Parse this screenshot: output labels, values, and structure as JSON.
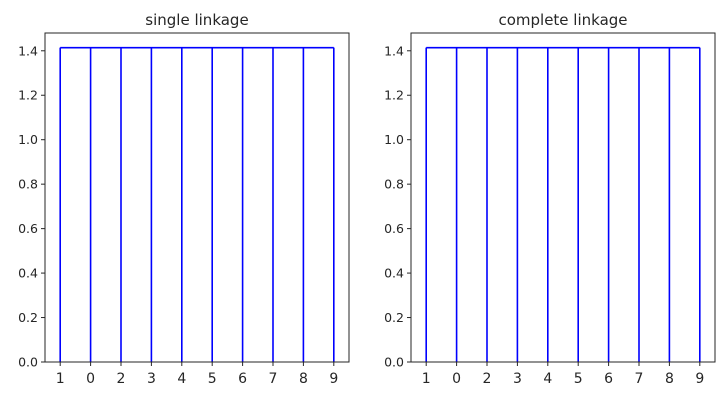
{
  "chart_data": [
    {
      "type": "dendrogram",
      "title": "single linkage",
      "xlabel": "",
      "ylabel": "",
      "ylim": [
        0,
        1.48
      ],
      "yticks": [
        "0.0",
        "0.2",
        "0.4",
        "0.6",
        "0.8",
        "1.0",
        "1.2",
        "1.4"
      ],
      "leaves": [
        "1",
        "0",
        "2",
        "3",
        "4",
        "5",
        "6",
        "7",
        "8",
        "9"
      ],
      "merge_height": 1.414,
      "color": "#0000ff",
      "grid": false
    },
    {
      "type": "dendrogram",
      "title": "complete linkage",
      "xlabel": "",
      "ylabel": "",
      "ylim": [
        0,
        1.48
      ],
      "yticks": [
        "0.0",
        "0.2",
        "0.4",
        "0.6",
        "0.8",
        "1.0",
        "1.2",
        "1.4"
      ],
      "leaves": [
        "1",
        "0",
        "2",
        "3",
        "4",
        "5",
        "6",
        "7",
        "8",
        "9"
      ],
      "merge_height": 1.414,
      "color": "#0000ff",
      "grid": false
    }
  ]
}
